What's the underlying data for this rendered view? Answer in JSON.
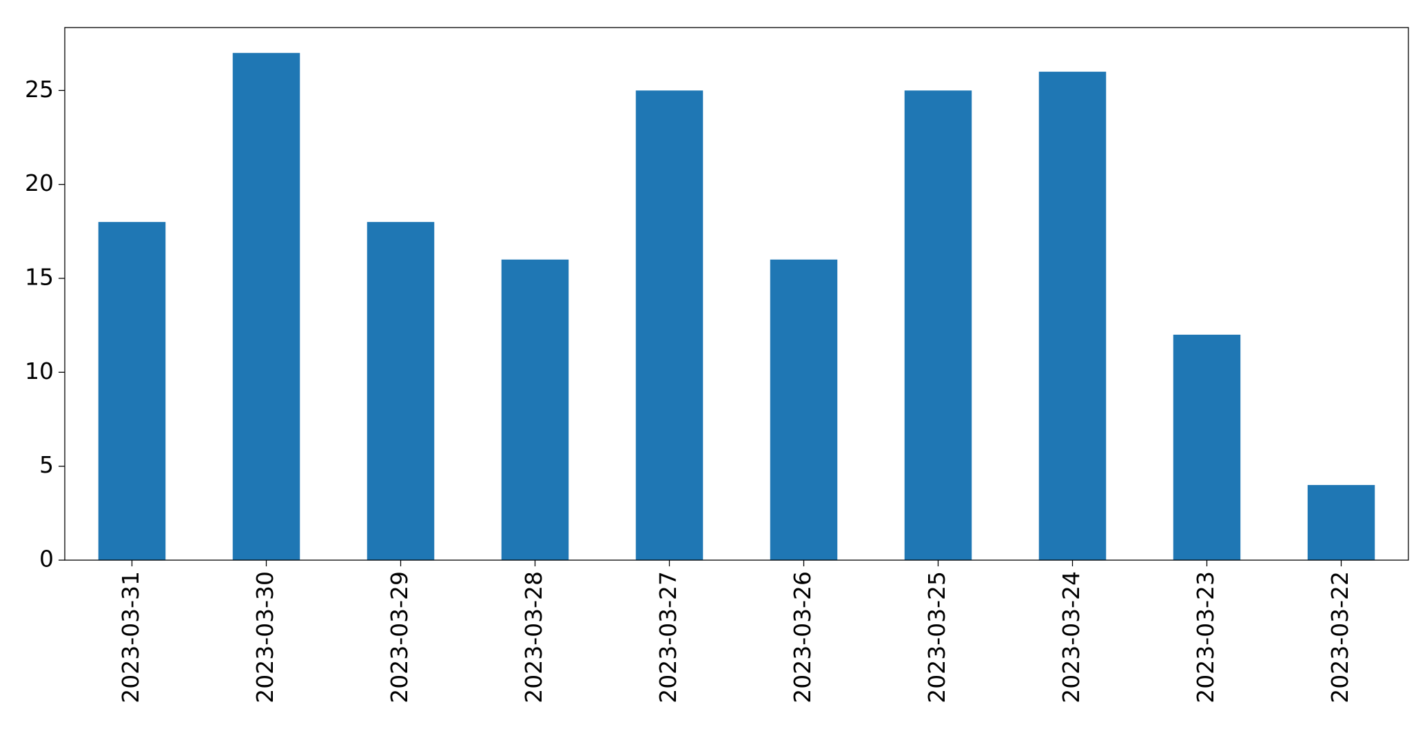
{
  "chart_data": {
    "type": "bar",
    "categories": [
      "2023-03-31",
      "2023-03-30",
      "2023-03-29",
      "2023-03-28",
      "2023-03-27",
      "2023-03-26",
      "2023-03-25",
      "2023-03-24",
      "2023-03-23",
      "2023-03-22"
    ],
    "values": [
      18,
      27,
      18,
      16,
      25,
      16,
      25,
      26,
      12,
      4
    ],
    "color": "#1f77b4",
    "ylim": [
      0,
      28.35
    ],
    "yticks": [
      0,
      5,
      10,
      15,
      20,
      25
    ],
    "grid": false
  }
}
